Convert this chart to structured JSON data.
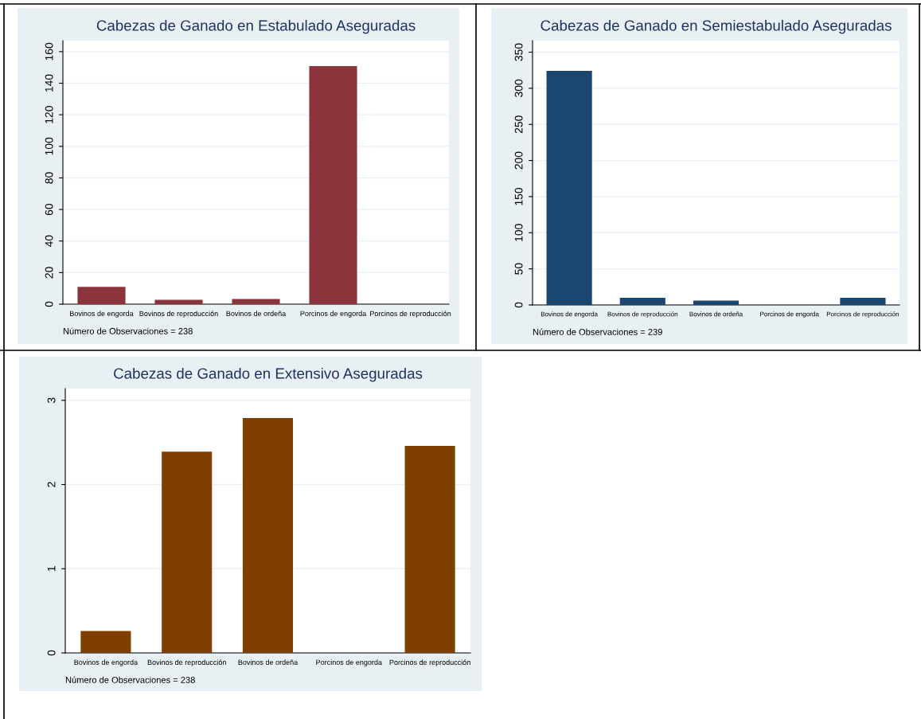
{
  "chart_data": [
    {
      "type": "bar",
      "title": "Cabezas de Ganado en Estabulado Aseguradas",
      "categories": [
        "Bovinos de engorda",
        "Bovinos de reproducción",
        "Bovinos de ordeña",
        "Porcinos de engorda",
        "Porcinos de reproducción"
      ],
      "values": [
        11,
        2.8,
        3.3,
        150.8,
        0
      ],
      "color": "#8c343c",
      "ylim": [
        0,
        167
      ],
      "yticks": [
        0,
        20,
        40,
        60,
        80,
        100,
        120,
        140,
        160
      ],
      "grid": "y",
      "annotations": [
        "Número de Observaciones = 238"
      ]
    },
    {
      "type": "bar",
      "title": "Cabezas de Ganado en Semiestabulado Aseguradas",
      "categories": [
        "Bovinos de engorda",
        "Bovinos de reproducción",
        "Bovinos de ordeña",
        "Porcinos de engorda",
        "Porcinos de reproducción"
      ],
      "values": [
        324,
        10,
        6,
        0,
        10
      ],
      "color": "#1b4670",
      "ylim": [
        0,
        366
      ],
      "yticks": [
        0,
        50,
        100,
        150,
        200,
        250,
        300,
        350
      ],
      "grid": "y",
      "annotations": [
        "Número de Observaciones = 239"
      ]
    },
    {
      "type": "bar",
      "title": "Cabezas de Ganado en Extensivo Aseguradas",
      "categories": [
        "Bovinos de engorda",
        "Bovinos de reproducción",
        "Bovinos de ordeña",
        "Porcinos de engorda",
        "Porcinos de reproducción"
      ],
      "values": [
        0.26,
        2.39,
        2.79,
        0,
        2.46
      ],
      "color": "#7f3f00",
      "ylim": [
        0,
        3.14
      ],
      "yticks": [
        0,
        1,
        2,
        3
      ],
      "grid": "y",
      "annotations": [
        "Número de Observaciones = 238"
      ]
    }
  ]
}
